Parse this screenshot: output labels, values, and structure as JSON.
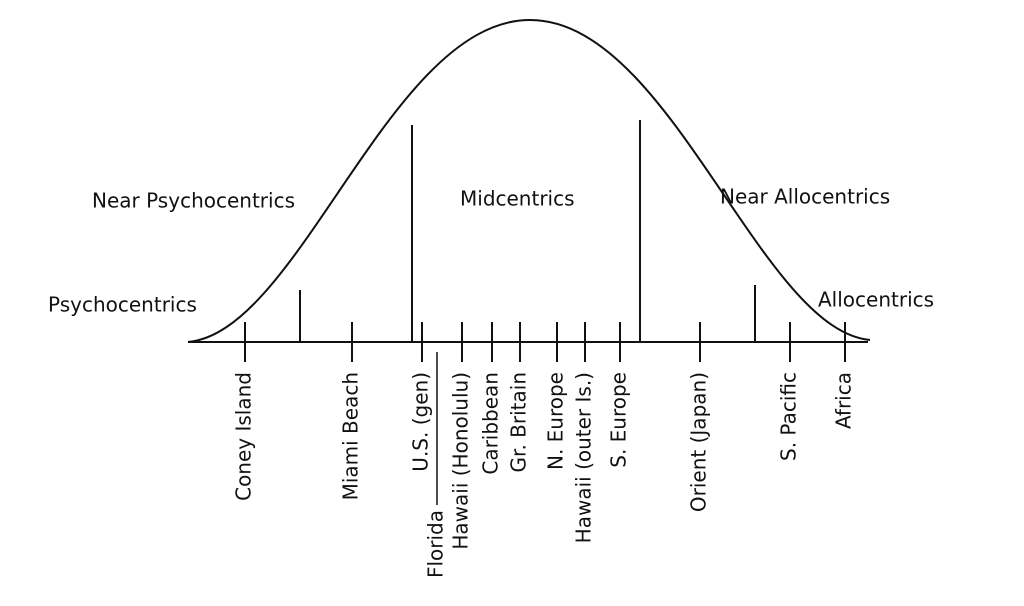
{
  "groups": [
    "Psychocentrics",
    "Near Psychocentrics",
    "Midcentrics",
    "Near Allocentrics",
    "Allocentrics"
  ],
  "destinations": [
    "Coney Island",
    "Miami Beach",
    "U.S. (gen)",
    "Florida",
    "Hawaii (Honolulu)",
    "Caribbean",
    "Gr. Britain",
    "N. Europe",
    "Hawaii (outer Is.)",
    "S. Europe",
    "Orient (Japan)",
    "S. Pacific",
    "Africa"
  ]
}
